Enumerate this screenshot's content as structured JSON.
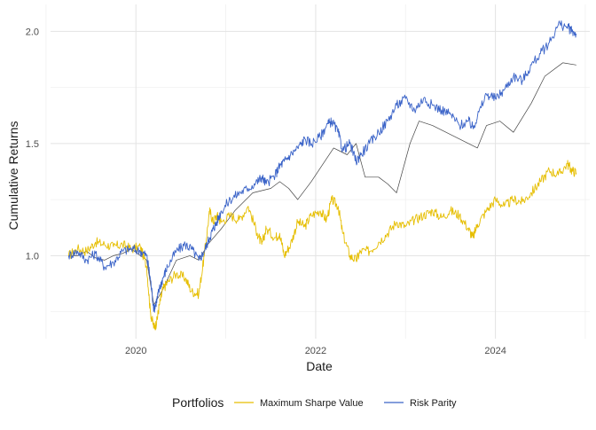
{
  "chart_data": {
    "type": "line",
    "xlabel": "Date",
    "ylabel": "Cumulative Returns",
    "x_ticks": [
      "2020",
      "2022",
      "2024"
    ],
    "y_ticks": [
      "1.0",
      "1.5",
      "2.0"
    ],
    "xlim": [
      2019.05,
      2025.05
    ],
    "ylim": [
      0.63,
      2.12
    ],
    "grid": true,
    "legend": {
      "title": "Portfolios",
      "position": "bottom",
      "entries": [
        "Maximum Sharpe Value",
        "Risk Parity"
      ]
    },
    "series": [
      {
        "name": "Maximum Sharpe Value",
        "color": "#E6BE00",
        "x": [
          2019.25,
          2019.35,
          2019.45,
          2019.55,
          2019.65,
          2019.75,
          2019.85,
          2019.95,
          2020.05,
          2020.12,
          2020.16,
          2020.2,
          2020.23,
          2020.26,
          2020.3,
          2020.35,
          2020.45,
          2020.55,
          2020.62,
          2020.7,
          2020.76,
          2020.82,
          2020.86,
          2020.9,
          2020.95,
          2021.05,
          2021.15,
          2021.25,
          2021.35,
          2021.4,
          2021.45,
          2021.55,
          2021.6,
          2021.65,
          2021.72,
          2021.8,
          2021.88,
          2021.95,
          2022.05,
          2022.12,
          2022.18,
          2022.25,
          2022.3,
          2022.38,
          2022.45,
          2022.5,
          2022.6,
          2022.7,
          2022.8,
          2022.9,
          2023.0,
          2023.1,
          2023.2,
          2023.3,
          2023.4,
          2023.5,
          2023.6,
          2023.7,
          2023.75,
          2023.8,
          2023.9,
          2024.0,
          2024.1,
          2024.2,
          2024.3,
          2024.4,
          2024.5,
          2024.6,
          2024.7,
          2024.8,
          2024.85,
          2024.9
        ],
        "values": [
          1.0,
          1.03,
          1.02,
          1.06,
          1.05,
          1.04,
          1.05,
          1.03,
          1.04,
          0.95,
          0.75,
          0.68,
          0.7,
          0.78,
          0.85,
          0.88,
          0.92,
          0.9,
          0.84,
          0.83,
          1.0,
          1.2,
          1.15,
          1.18,
          1.15,
          1.18,
          1.16,
          1.22,
          1.1,
          1.05,
          1.12,
          1.08,
          1.1,
          1.0,
          1.05,
          1.15,
          1.13,
          1.18,
          1.2,
          1.16,
          1.25,
          1.22,
          1.1,
          1.0,
          0.98,
          1.02,
          1.02,
          1.06,
          1.1,
          1.15,
          1.13,
          1.16,
          1.18,
          1.2,
          1.17,
          1.2,
          1.18,
          1.12,
          1.08,
          1.14,
          1.2,
          1.25,
          1.22,
          1.25,
          1.24,
          1.28,
          1.33,
          1.38,
          1.36,
          1.41,
          1.38,
          1.37
        ]
      },
      {
        "name": "Risk Parity",
        "color": "#3A63C8",
        "x": [
          2019.25,
          2019.35,
          2019.45,
          2019.55,
          2019.65,
          2019.75,
          2019.85,
          2019.95,
          2020.05,
          2020.12,
          2020.16,
          2020.2,
          2020.23,
          2020.26,
          2020.3,
          2020.35,
          2020.45,
          2020.55,
          2020.62,
          2020.7,
          2020.76,
          2020.82,
          2020.86,
          2020.9,
          2020.95,
          2021.05,
          2021.15,
          2021.25,
          2021.35,
          2021.4,
          2021.45,
          2021.55,
          2021.6,
          2021.65,
          2021.72,
          2021.8,
          2021.88,
          2021.95,
          2022.05,
          2022.12,
          2022.18,
          2022.25,
          2022.3,
          2022.38,
          2022.45,
          2022.5,
          2022.6,
          2022.7,
          2022.8,
          2022.9,
          2023.0,
          2023.1,
          2023.2,
          2023.3,
          2023.4,
          2023.5,
          2023.6,
          2023.7,
          2023.75,
          2023.8,
          2023.9,
          2024.0,
          2024.1,
          2024.2,
          2024.3,
          2024.4,
          2024.5,
          2024.6,
          2024.7,
          2024.8,
          2024.85,
          2024.9
        ],
        "values": [
          1.0,
          1.02,
          0.98,
          1.01,
          0.95,
          0.97,
          1.02,
          1.03,
          1.02,
          1.0,
          0.9,
          0.76,
          0.8,
          0.85,
          0.9,
          0.95,
          1.02,
          1.05,
          1.03,
          0.98,
          1.02,
          1.08,
          1.12,
          1.15,
          1.2,
          1.25,
          1.28,
          1.3,
          1.33,
          1.35,
          1.32,
          1.36,
          1.4,
          1.42,
          1.45,
          1.48,
          1.52,
          1.5,
          1.53,
          1.58,
          1.6,
          1.55,
          1.47,
          1.5,
          1.42,
          1.45,
          1.5,
          1.55,
          1.6,
          1.67,
          1.7,
          1.65,
          1.7,
          1.67,
          1.65,
          1.63,
          1.58,
          1.6,
          1.57,
          1.62,
          1.72,
          1.7,
          1.74,
          1.8,
          1.78,
          1.85,
          1.9,
          1.95,
          2.03,
          2.02,
          2.0,
          1.99
        ]
      },
      {
        "name": "",
        "color": "#444444",
        "x": [
          2019.25,
          2019.35,
          2019.45,
          2019.55,
          2019.65,
          2019.75,
          2019.85,
          2019.95,
          2020.05,
          2020.12,
          2020.2,
          2020.3,
          2020.45,
          2020.6,
          2020.7,
          2020.8,
          2020.95,
          2021.1,
          2021.3,
          2021.5,
          2021.6,
          2021.7,
          2021.8,
          2021.95,
          2022.1,
          2022.2,
          2022.35,
          2022.45,
          2022.55,
          2022.7,
          2022.8,
          2022.9,
          2023.05,
          2023.15,
          2023.3,
          2023.45,
          2023.6,
          2023.8,
          2023.9,
          2024.05,
          2024.2,
          2024.4,
          2024.55,
          2024.75,
          2024.9
        ],
        "values": [
          1.0,
          1.0,
          1.02,
          0.99,
          0.98,
          1.0,
          1.01,
          1.03,
          1.0,
          0.98,
          0.78,
          0.85,
          0.98,
          1.0,
          0.98,
          1.05,
          1.12,
          1.2,
          1.28,
          1.3,
          1.33,
          1.3,
          1.25,
          1.33,
          1.42,
          1.48,
          1.45,
          1.5,
          1.35,
          1.35,
          1.32,
          1.28,
          1.5,
          1.6,
          1.58,
          1.55,
          1.52,
          1.48,
          1.58,
          1.6,
          1.55,
          1.68,
          1.8,
          1.86,
          1.85
        ]
      }
    ]
  }
}
